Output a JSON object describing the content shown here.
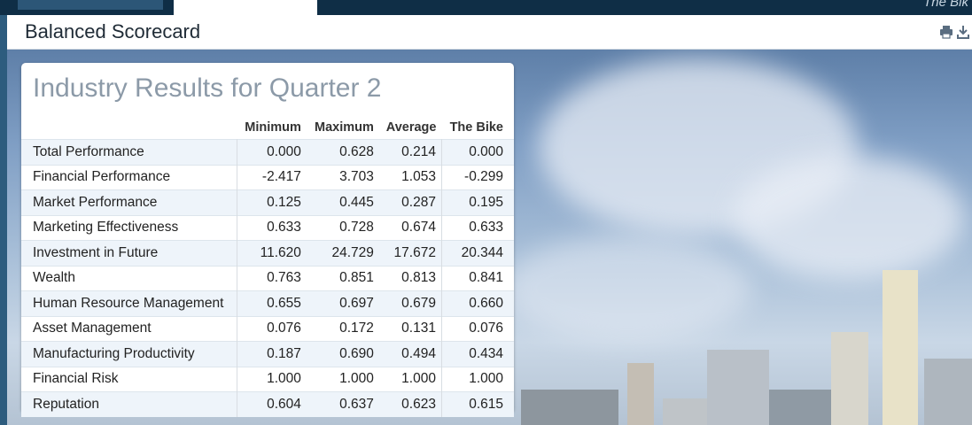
{
  "header": {
    "brand_fragment": "The Bik",
    "page_title": "Balanced Scorecard"
  },
  "panel": {
    "title": "Industry Results for Quarter 2",
    "columns": [
      "",
      "Minimum",
      "Maximum",
      "Average",
      "The Bike"
    ],
    "rows": [
      {
        "label": "Total Performance",
        "values": [
          "0.000",
          "0.628",
          "0.214",
          "0.000"
        ]
      },
      {
        "label": "Financial Performance",
        "values": [
          "-2.417",
          "3.703",
          "1.053",
          "-0.299"
        ]
      },
      {
        "label": "Market Performance",
        "values": [
          "0.125",
          "0.445",
          "0.287",
          "0.195"
        ]
      },
      {
        "label": "Marketing Effectiveness",
        "values": [
          "0.633",
          "0.728",
          "0.674",
          "0.633"
        ]
      },
      {
        "label": "Investment in Future",
        "values": [
          "11.620",
          "24.729",
          "17.672",
          "20.344"
        ]
      },
      {
        "label": "Wealth",
        "values": [
          "0.763",
          "0.851",
          "0.813",
          "0.841"
        ]
      },
      {
        "label": "Human Resource Management",
        "values": [
          "0.655",
          "0.697",
          "0.679",
          "0.660"
        ]
      },
      {
        "label": "Asset Management",
        "values": [
          "0.076",
          "0.172",
          "0.131",
          "0.076"
        ]
      },
      {
        "label": "Manufacturing Productivity",
        "values": [
          "0.187",
          "0.690",
          "0.494",
          "0.434"
        ]
      },
      {
        "label": "Financial Risk",
        "values": [
          "1.000",
          "1.000",
          "1.000",
          "1.000"
        ]
      },
      {
        "label": "Reputation",
        "values": [
          "0.604",
          "0.637",
          "0.623",
          "0.615"
        ]
      }
    ]
  },
  "icons": [
    "print-icon",
    "download-icon"
  ]
}
